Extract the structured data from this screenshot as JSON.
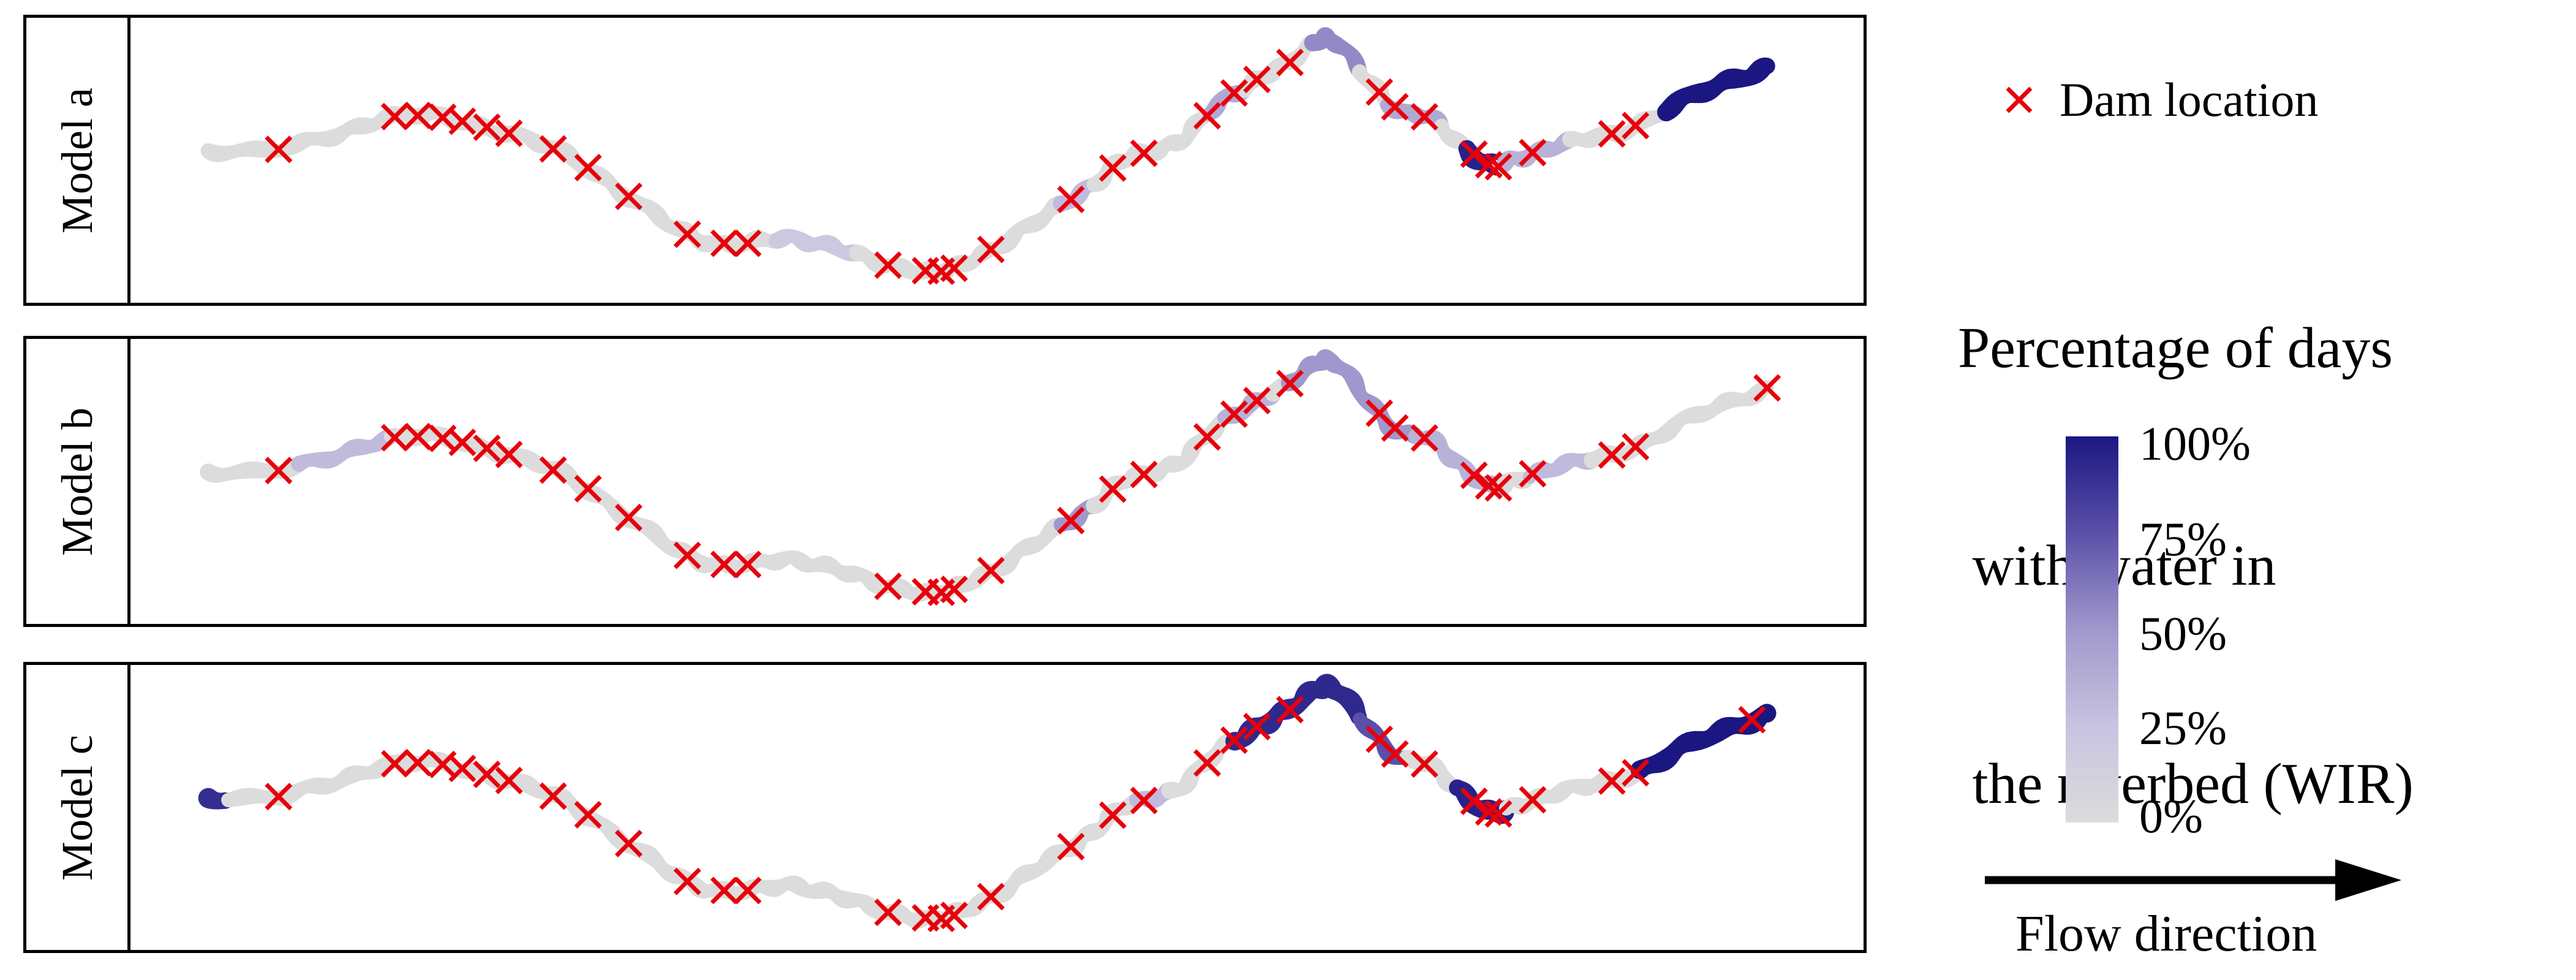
{
  "figure": {
    "panels": [
      {
        "label": "Model a"
      },
      {
        "label": "Model b"
      },
      {
        "label": "Model c"
      }
    ],
    "legend": {
      "dam_label": "Dam location",
      "colorbar_title_lines": [
        "Percentage of days",
        " with water in",
        " the riverbed (WIR)"
      ],
      "colorbar_ticks": [
        "100%",
        "75%",
        "50%",
        "25%",
        "0%"
      ],
      "flow_label": "Flow direction"
    },
    "colors": {
      "dam_marker": "#e8000b",
      "wir_stops": [
        {
          "value": 0,
          "color": "#dcdcdc"
        },
        {
          "value": 0.25,
          "color": "#c8c3e0"
        },
        {
          "value": 0.5,
          "color": "#a098cc"
        },
        {
          "value": 0.75,
          "color": "#5b50a8"
        },
        {
          "value": 1,
          "color": "#1b1782"
        }
      ]
    }
  },
  "chart_data": {
    "type": "scatter",
    "title": "",
    "description": "Meandering river course drawn three times (Model a, Model b, Model c) as a dense band of dots colored by the percentage of days with water in the riverbed (WIR, 0% light gray to 100% dark navy). Red x markers indicate dam locations along the river. Flow direction is from left to right. No numeric axes are shown.",
    "legend_position": "right",
    "colorbar": {
      "min": 0,
      "max": 1,
      "tick_values": [
        1,
        0.75,
        0.5,
        0.25,
        0
      ]
    },
    "river_path": [
      [
        0.018,
        0.466
      ],
      [
        0.061,
        0.466
      ],
      [
        0.096,
        0.415
      ],
      [
        0.126,
        0.352
      ],
      [
        0.157,
        0.341
      ],
      [
        0.187,
        0.375
      ],
      [
        0.217,
        0.426
      ],
      [
        0.247,
        0.5
      ],
      [
        0.278,
        0.625
      ],
      [
        0.308,
        0.75
      ],
      [
        0.333,
        0.807
      ],
      [
        0.359,
        0.813
      ],
      [
        0.384,
        0.795
      ],
      [
        0.409,
        0.824
      ],
      [
        0.434,
        0.881
      ],
      [
        0.46,
        0.909
      ],
      [
        0.48,
        0.915
      ],
      [
        0.5,
        0.864
      ],
      [
        0.525,
        0.778
      ],
      [
        0.551,
        0.682
      ],
      [
        0.571,
        0.597
      ],
      [
        0.591,
        0.511
      ],
      [
        0.611,
        0.466
      ],
      [
        0.631,
        0.415
      ],
      [
        0.652,
        0.295
      ],
      [
        0.672,
        0.216
      ],
      [
        0.692,
        0.159
      ],
      [
        0.712,
        0.068
      ],
      [
        0.722,
        0.057
      ],
      [
        0.742,
        0.188
      ],
      [
        0.763,
        0.313
      ],
      [
        0.783,
        0.352
      ],
      [
        0.803,
        0.443
      ],
      [
        0.823,
        0.528
      ],
      [
        0.838,
        0.5
      ],
      [
        0.859,
        0.455
      ],
      [
        0.884,
        0.426
      ],
      [
        0.909,
        0.386
      ],
      [
        0.939,
        0.295
      ],
      [
        0.97,
        0.216
      ],
      [
        0.995,
        0.159
      ]
    ],
    "models": [
      {
        "name": "Model a",
        "wir_segments": [
          [
            0.374,
            0.424,
            0.2
          ],
          [
            0.553,
            0.572,
            0.3
          ],
          [
            0.645,
            0.665,
            0.4
          ],
          [
            0.71,
            0.74,
            0.55
          ],
          [
            0.758,
            0.79,
            0.4
          ],
          [
            0.806,
            0.826,
            0.95
          ],
          [
            0.83,
            0.872,
            0.35
          ],
          [
            0.93,
            1.0,
            1.0
          ]
        ],
        "dams": [
          0.061,
          0.134,
          0.149,
          0.164,
          0.177,
          0.192,
          0.205,
          0.234,
          0.255,
          0.281,
          0.318,
          0.341,
          0.356,
          0.444,
          0.467,
          0.477,
          0.485,
          0.508,
          0.558,
          0.584,
          0.604,
          0.643,
          0.66,
          0.675,
          0.695,
          0.751,
          0.761,
          0.78,
          0.811,
          0.82,
          0.826,
          0.847,
          0.897,
          0.912
        ]
      },
      {
        "name": "Model b",
        "wir_segments": [
          [
            0.075,
            0.132,
            0.3
          ],
          [
            0.553,
            0.572,
            0.5
          ],
          [
            0.655,
            0.685,
            0.35
          ],
          [
            0.695,
            0.775,
            0.5
          ],
          [
            0.775,
            0.83,
            0.35
          ],
          [
            0.845,
            0.885,
            0.3
          ]
        ],
        "dams": [
          0.061,
          0.134,
          0.149,
          0.164,
          0.177,
          0.192,
          0.205,
          0.234,
          0.255,
          0.281,
          0.318,
          0.341,
          0.356,
          0.444,
          0.467,
          0.477,
          0.485,
          0.508,
          0.558,
          0.584,
          0.604,
          0.643,
          0.66,
          0.675,
          0.695,
          0.751,
          0.761,
          0.78,
          0.811,
          0.82,
          0.826,
          0.847,
          0.897,
          0.912,
          0.995
        ]
      },
      {
        "name": "Model c",
        "wir_segments": [
          [
            0.018,
            0.03,
            0.9
          ],
          [
            0.6,
            0.62,
            0.3
          ],
          [
            0.66,
            0.74,
            0.92
          ],
          [
            0.74,
            0.768,
            0.75
          ],
          [
            0.8,
            0.832,
            0.95
          ],
          [
            0.915,
            1.0,
            1.0
          ]
        ],
        "dams": [
          0.061,
          0.134,
          0.149,
          0.164,
          0.177,
          0.192,
          0.205,
          0.234,
          0.255,
          0.281,
          0.318,
          0.341,
          0.356,
          0.444,
          0.467,
          0.477,
          0.485,
          0.508,
          0.558,
          0.584,
          0.604,
          0.643,
          0.66,
          0.675,
          0.695,
          0.751,
          0.761,
          0.78,
          0.811,
          0.82,
          0.826,
          0.847,
          0.897,
          0.912,
          0.985
        ]
      }
    ]
  }
}
